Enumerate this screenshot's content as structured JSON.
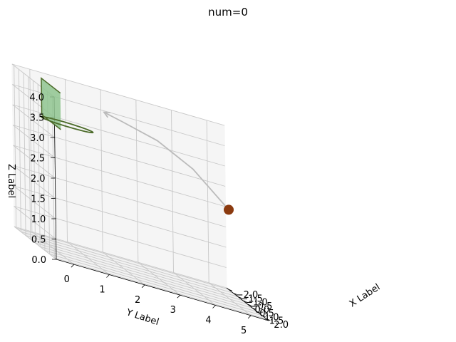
{
  "chart_data": {
    "type": "scatter",
    "projection": "3d",
    "title": "num=0",
    "xlabel": "X Label",
    "ylabel": "Y Label",
    "zlabel": "Z Label",
    "xlim": [
      -2.2,
      2.2
    ],
    "ylim": [
      -0.5,
      5.5
    ],
    "zlim": [
      0,
      4
    ],
    "xticks": [
      -2.0,
      -1.5,
      -1.0,
      -0.5,
      0.0,
      0.5,
      1.0,
      1.5,
      2.0
    ],
    "xtick_labels": [
      "−2.0",
      "−1.5",
      "−1.0",
      "−0.5",
      "0.0",
      "0.5",
      "1.0",
      "1.5",
      "2.0"
    ],
    "yticks": [
      0,
      1,
      2,
      3,
      4,
      5
    ],
    "ytick_labels": [
      "0",
      "1",
      "2",
      "3",
      "4",
      "5"
    ],
    "zticks": [
      0,
      0.5,
      1,
      1.5,
      2,
      2.5,
      3,
      3.5,
      4
    ],
    "ztick_labels": [
      "0.0",
      "0.5",
      "1.0",
      "1.5",
      "2.0",
      "2.5",
      "3.0",
      "3.5",
      "4.0"
    ],
    "grid": true,
    "ball": {
      "x": 0.0,
      "y": 5.0,
      "z": 2.2,
      "color": "#8b3a0f"
    },
    "trajectory": {
      "color": "#bbbbbb",
      "points": [
        [
          0.0,
          5.0,
          2.2
        ],
        [
          0.0,
          4.0,
          2.95
        ],
        [
          0.0,
          3.0,
          3.4
        ],
        [
          0.0,
          2.0,
          3.62
        ],
        [
          0.0,
          1.5,
          3.72
        ]
      ]
    },
    "hoop": {
      "backboard_corners": [
        [
          1.0,
          0.0,
          4.0
        ],
        [
          -1.0,
          0.0,
          4.0
        ],
        [
          -1.0,
          0.0,
          3.1
        ],
        [
          1.0,
          0.0,
          3.1
        ]
      ],
      "backboard_fill": "#8fc48f",
      "backboard_edge": "#4c6b2a",
      "rim_center": [
        0.0,
        0.45,
        3.15
      ],
      "rim_radius": 0.45,
      "rim_color": "#4c6b2a"
    }
  }
}
